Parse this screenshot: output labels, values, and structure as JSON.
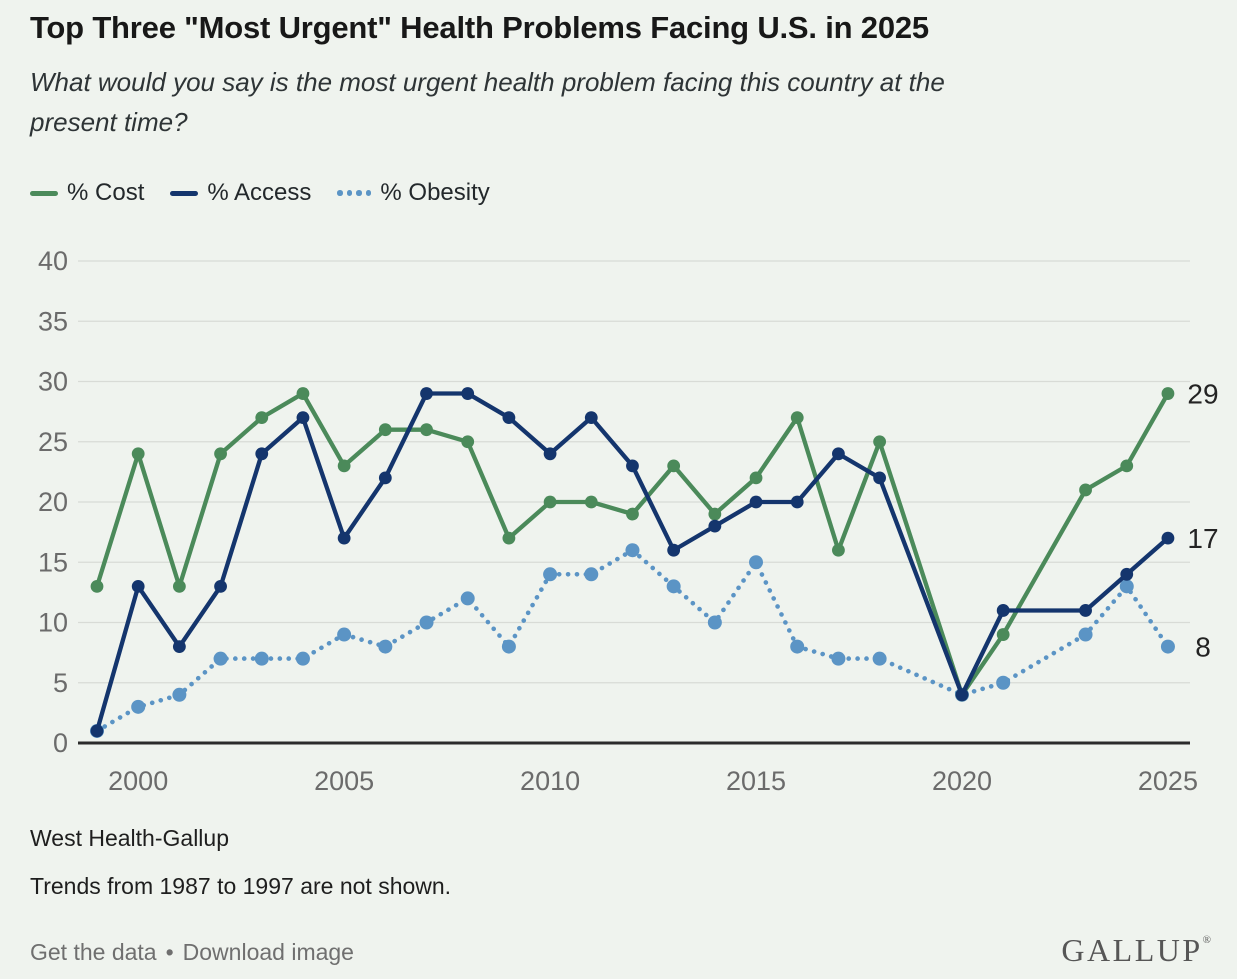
{
  "header": {
    "title": "Top Three \"Most Urgent\" Health Problems Facing U.S. in 2025",
    "subtitle_line1": "What would you say is the most urgent health problem facing this country at the",
    "subtitle_line2": "present time?"
  },
  "legend": [
    {
      "label": "% Cost",
      "color": "#4b8a5a",
      "style": "solid"
    },
    {
      "label": "% Access",
      "color": "#14356d",
      "style": "solid"
    },
    {
      "label": "% Obesity",
      "color": "#5b94c5",
      "style": "dotted"
    }
  ],
  "chart_data": {
    "type": "line",
    "x": [
      1999,
      2000,
      2001,
      2002,
      2003,
      2004,
      2005,
      2006,
      2007,
      2008,
      2009,
      2010,
      2011,
      2012,
      2013,
      2014,
      2015,
      2016,
      2017,
      2018,
      2020,
      2021,
      2023,
      2024,
      2025
    ],
    "series": [
      {
        "name": "% Cost",
        "color": "#4b8a5a",
        "style": "solid",
        "end_label": "29",
        "values": [
          13,
          24,
          13,
          24,
          27,
          29,
          23,
          26,
          26,
          25,
          17,
          20,
          20,
          19,
          23,
          19,
          22,
          27,
          16,
          25,
          4,
          9,
          21,
          23,
          29
        ]
      },
      {
        "name": "% Access",
        "color": "#14356d",
        "style": "solid",
        "end_label": "17",
        "values": [
          1,
          13,
          8,
          13,
          24,
          27,
          17,
          22,
          29,
          29,
          27,
          24,
          27,
          23,
          16,
          18,
          20,
          20,
          24,
          22,
          4,
          11,
          11,
          14,
          17
        ]
      },
      {
        "name": "% Obesity",
        "color": "#5b94c5",
        "style": "dotted",
        "end_label": "8",
        "values": [
          1,
          3,
          4,
          7,
          7,
          7,
          9,
          8,
          10,
          12,
          8,
          14,
          14,
          16,
          13,
          10,
          15,
          8,
          7,
          7,
          4,
          5,
          9,
          13,
          8
        ]
      }
    ],
    "ylim": [
      0,
      40
    ],
    "yticks": [
      0,
      5,
      10,
      15,
      20,
      25,
      30,
      35,
      40
    ],
    "xticks": [
      2000,
      2005,
      2010,
      2015,
      2020,
      2025
    ],
    "grid": true,
    "legend_position": "top-left",
    "colors": {
      "background": "#eff3ee",
      "gridline": "#d8dbd6",
      "axis": "#2b2b2b",
      "tick_label": "#6b6b6b",
      "end_label": "#232323"
    }
  },
  "footer": {
    "source": "West Health-Gallup",
    "note": "Trends from 1987 to 1997 are not shown.",
    "links": {
      "get_data": "Get the data",
      "separator": "•",
      "download": "Download image"
    },
    "logo": "GALLUP",
    "logo_mark": "®"
  }
}
